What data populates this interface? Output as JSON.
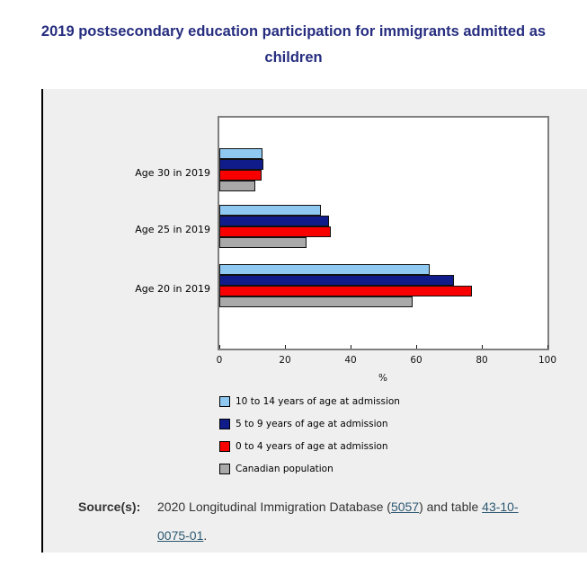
{
  "title": "2019 postsecondary education participation for immigrants admitted as children",
  "chart_data": {
    "type": "bar",
    "orientation": "horizontal",
    "categories": [
      "Age 30 in 2019",
      "Age 25 in 2019",
      "Age 20 in 2019"
    ],
    "series": [
      {
        "name": "10 to 14 years of age at admission",
        "color": "#8FC8F0",
        "values": [
          13.2,
          31,
          64
        ]
      },
      {
        "name": "5 to 9 years of age at admission",
        "color": "#101C8A",
        "values": [
          13.4,
          33.5,
          71.5
        ]
      },
      {
        "name": "0 to 4 years of age at admission",
        "color": "#F90000",
        "values": [
          12.9,
          34,
          77
        ]
      },
      {
        "name": "Canadian population",
        "color": "#A9A9A9",
        "values": [
          11,
          26.5,
          59
        ]
      }
    ],
    "xlabel": "%",
    "xlim": [
      0,
      100
    ],
    "x_ticks": [
      0,
      20,
      40,
      60,
      80,
      100
    ],
    "grid": false,
    "legend_position": "bottom-left"
  },
  "source": {
    "label": "Source(s):",
    "text_before_link1": "2020 Longitudinal Immigration Database (",
    "link1": "5057",
    "text_between_links": ") and table ",
    "link2": "43-10-0075-01",
    "text_after_link2": "."
  },
  "colors": {
    "title": "#262D7F",
    "panel_bg": "#EFEFEF",
    "panel_border": "#000000",
    "plot_border": "#7F7F7F",
    "bar_border": "#111111",
    "link": "#2D5972",
    "body_text": "#333333"
  }
}
